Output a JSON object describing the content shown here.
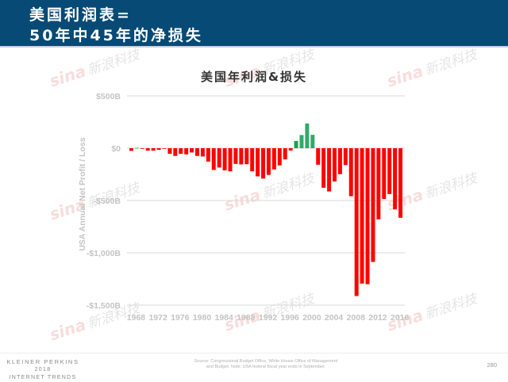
{
  "header": {
    "title_line1": "美国利润表=",
    "title_line2": "50年中45年的净损失",
    "background": "#064a75"
  },
  "watermark": {
    "logo": "sina",
    "text": "新浪科技"
  },
  "chart_data": {
    "type": "bar",
    "title": "美国年利润&损失",
    "xlabel": "",
    "ylabel": "USA Annual Net Profit / Loss",
    "ylim": [
      -1500,
      500
    ],
    "yunit": "$B",
    "yticks": [
      "$500B",
      "$0",
      "-$500B",
      "-$1,000B",
      "-$1,500B"
    ],
    "ytick_values": [
      500,
      0,
      -500,
      -1000,
      -1500
    ],
    "xticks": [
      "1968",
      "1972",
      "1976",
      "1980",
      "1984",
      "1988",
      "1992",
      "1996",
      "2000",
      "2004",
      "2008",
      "2012",
      "2016"
    ],
    "grid": true,
    "legend": null,
    "colors": {
      "profit": "#2eaa6a",
      "profit_small": "#13a54a",
      "loss": "#ff0000"
    },
    "categories": [
      1968,
      1969,
      1970,
      1971,
      1972,
      1973,
      1974,
      1975,
      1976,
      1977,
      1978,
      1979,
      1980,
      1981,
      1982,
      1983,
      1984,
      1985,
      1986,
      1987,
      1988,
      1989,
      1990,
      1991,
      1992,
      1993,
      1994,
      1995,
      1996,
      1997,
      1998,
      1999,
      2000,
      2001,
      2002,
      2003,
      2004,
      2005,
      2006,
      2007,
      2008,
      2009,
      2010,
      2011,
      2012,
      2013,
      2014,
      2015,
      2016,
      2017
    ],
    "values": [
      -25,
      3,
      -3,
      -23,
      -23,
      -15,
      -6,
      -53,
      -74,
      -54,
      -59,
      -41,
      -74,
      -79,
      -128,
      -208,
      -185,
      -212,
      -221,
      -150,
      -155,
      -153,
      -221,
      -269,
      -290,
      -255,
      -203,
      -164,
      -107,
      -22,
      69,
      126,
      236,
      128,
      -158,
      -378,
      -413,
      -318,
      -248,
      -161,
      -459,
      -1413,
      -1294,
      -1300,
      -1087,
      -680,
      -485,
      -438,
      -585,
      -665
    ]
  },
  "footer": {
    "logo_line1": "KLEINER PERKINS",
    "logo_line2": "2018",
    "logo_line3": "INTERNET TRENDS",
    "source_line1": "Source: Congressional Budget Office, White House Office of Management",
    "source_line2": "and Budget.  Note: USA federal fiscal year ends in September.",
    "page_number": "280"
  }
}
